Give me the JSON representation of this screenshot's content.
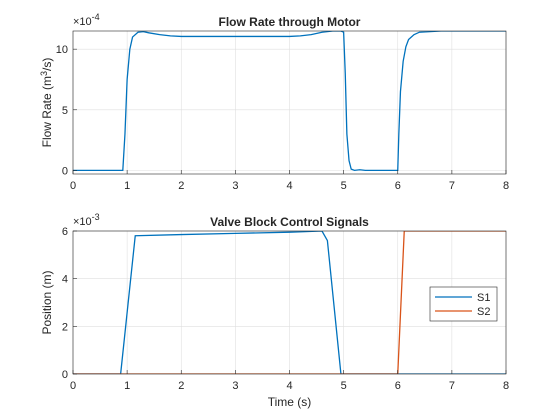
{
  "chart_data": [
    {
      "type": "line",
      "title": "Flow Rate through Motor",
      "ylabel_main": "Flow Rate (m",
      "ylabel_sup": "3",
      "ylabel_tail": "/s)",
      "xlabel": "",
      "exponent_base": "×10",
      "exponent_power": "-4",
      "xlim": [
        0,
        8
      ],
      "ylim": [
        -0.3,
        11.5
      ],
      "grid": true,
      "xticks": [
        "0",
        "1",
        "2",
        "3",
        "4",
        "5",
        "6",
        "7",
        "8"
      ],
      "yticks": [
        "0",
        "5",
        "10"
      ],
      "series": [
        {
          "color": "#0072BD",
          "x": [
            0,
            0.92,
            0.96,
            1.0,
            1.05,
            1.1,
            1.2,
            1.3,
            1.4,
            1.6,
            1.8,
            2.0,
            3.0,
            4.0,
            4.2,
            4.4,
            4.6,
            4.8,
            4.95,
            5.0,
            5.03,
            5.06,
            5.1,
            5.14,
            5.2,
            5.3,
            5.4,
            6.0,
            6.02,
            6.05,
            6.1,
            6.15,
            6.2,
            6.3,
            6.4,
            6.6,
            6.8,
            7.0,
            8.0
          ],
          "y": [
            0,
            0,
            3.0,
            7.5,
            10.0,
            11.0,
            11.4,
            11.45,
            11.35,
            11.2,
            11.1,
            11.05,
            11.05,
            11.05,
            11.1,
            11.2,
            11.4,
            11.5,
            11.5,
            11.4,
            8.0,
            3.0,
            0.8,
            0.1,
            0.0,
            0.05,
            0.0,
            0.0,
            3.0,
            6.5,
            9.0,
            10.2,
            10.8,
            11.2,
            11.4,
            11.45,
            11.5,
            11.5,
            11.5
          ]
        }
      ]
    },
    {
      "type": "line",
      "title": "Valve Block Control Signals",
      "ylabel": "Position (m)",
      "xlabel": "Time (s)",
      "exponent_base": "×10",
      "exponent_power": "-3",
      "xlim": [
        0,
        8
      ],
      "ylim": [
        0,
        6
      ],
      "grid": true,
      "xticks": [
        "0",
        "1",
        "2",
        "3",
        "4",
        "5",
        "6",
        "7",
        "8"
      ],
      "yticks": [
        "0",
        "2",
        "4",
        "6"
      ],
      "legend": {
        "placement": "right",
        "entries": [
          "S1",
          "S2"
        ]
      },
      "series": [
        {
          "name": "S1",
          "color": "#0072BD",
          "x": [
            0,
            0.88,
            1.15,
            2.0,
            3.0,
            4.0,
            4.6,
            4.7,
            4.95,
            8.0
          ],
          "y": [
            0,
            0,
            5.8,
            5.85,
            5.9,
            5.95,
            6.0,
            5.6,
            0,
            0
          ]
        },
        {
          "name": "S2",
          "color": "#D95319",
          "x": [
            0,
            6.0,
            6.12,
            8.0
          ],
          "y": [
            0,
            0,
            6.0,
            6.0
          ]
        }
      ]
    }
  ]
}
